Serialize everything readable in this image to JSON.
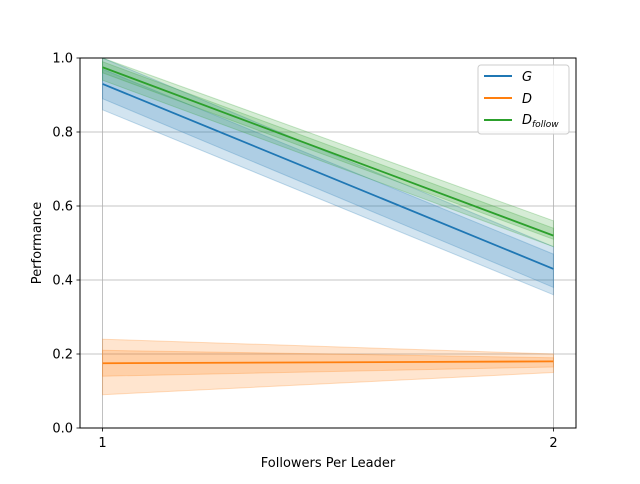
{
  "chart_data": {
    "type": "line",
    "title": "",
    "xlabel": "Followers Per Leader",
    "ylabel": "Performance",
    "xlim": [
      0.95,
      2.05
    ],
    "ylim": [
      0.0,
      1.0
    ],
    "xticks": [
      1,
      2
    ],
    "xtick_labels": [
      "1",
      "2"
    ],
    "yticks": [
      0.0,
      0.2,
      0.4,
      0.6,
      0.8,
      1.0
    ],
    "ytick_labels": [
      "0.0",
      "0.2",
      "0.4",
      "0.6",
      "0.8",
      "1.0"
    ],
    "grid": true,
    "legend_position": "top-right",
    "x": [
      1,
      2
    ],
    "series": [
      {
        "name": "G",
        "color": "#1f77b4",
        "values": [
          0.93,
          0.43
        ],
        "bands": [
          {
            "lower": [
              0.86,
              0.36
            ],
            "upper": [
              1.0,
              0.49
            ],
            "opacity": 0.2
          },
          {
            "lower": [
              0.89,
              0.38
            ],
            "upper": [
              0.97,
              0.47
            ],
            "opacity": 0.2
          }
        ]
      },
      {
        "name": "D",
        "color": "#ff7f0e",
        "values": [
          0.175,
          0.18
        ],
        "bands": [
          {
            "lower": [
              0.09,
              0.15
            ],
            "upper": [
              0.24,
              0.2
            ],
            "opacity": 0.2
          },
          {
            "lower": [
              0.14,
              0.165
            ],
            "upper": [
              0.21,
              0.19
            ],
            "opacity": 0.2
          }
        ]
      },
      {
        "name": "D_follow",
        "label_main": "D",
        "label_sub": "follow",
        "color": "#2ca02c",
        "values": [
          0.975,
          0.52
        ],
        "bands": [
          {
            "lower": [
              0.94,
              0.49
            ],
            "upper": [
              1.0,
              0.56
            ],
            "opacity": 0.2
          },
          {
            "lower": [
              0.96,
              0.51
            ],
            "upper": [
              0.99,
              0.54
            ],
            "opacity": 0.2
          }
        ]
      }
    ]
  }
}
